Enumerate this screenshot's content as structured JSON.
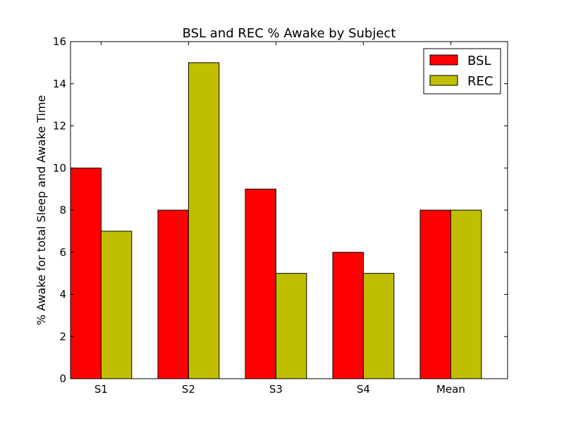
{
  "chart_data": {
    "type": "bar",
    "title": "BSL and REC % Awake by Subject",
    "xlabel": "",
    "ylabel": "% Awake for total Sleep and Awake Time",
    "categories": [
      "S1",
      "S2",
      "S3",
      "S4",
      "Mean"
    ],
    "series": [
      {
        "name": "BSL",
        "color": "#ff0000",
        "values": [
          10,
          8,
          9,
          6,
          8
        ]
      },
      {
        "name": "REC",
        "color": "#bfbf00",
        "values": [
          7,
          15,
          5,
          5,
          8
        ]
      }
    ],
    "ylim": [
      0,
      16
    ],
    "yticks": [
      "0",
      "2",
      "4",
      "6",
      "8",
      "10",
      "12",
      "14",
      "16"
    ],
    "grid": false,
    "legend_position": "top-right"
  }
}
